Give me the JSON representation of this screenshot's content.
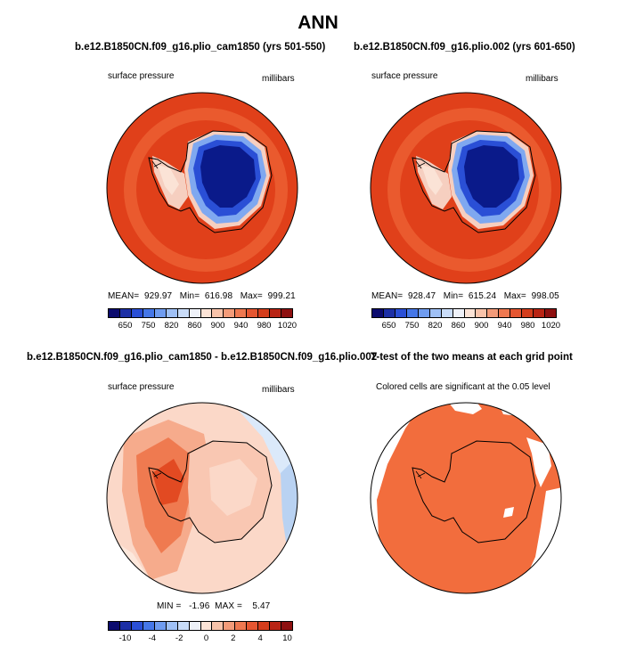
{
  "page_title": "ANN",
  "panels": [
    {
      "title": "b.e12.B1850CN.f09_g16.plio_cam1850 (yrs 501-550)",
      "left_label": "surface pressure",
      "right_label": "millibars",
      "stats": "MEAN=  929.97   Min=  616.98   Max=  999.21"
    },
    {
      "title": "b.e12.B1850CN.f09_g16.plio.002 (yrs 601-650)",
      "left_label": "surface pressure",
      "right_label": "millibars",
      "stats": "MEAN=  928.47   Min=  615.24   Max=  998.05"
    },
    {
      "title": "b.e12.B1850CN.f09_g16.plio_cam1850 - b.e12.B1850CN.f09_g16.plio.002",
      "left_label": "surface pressure",
      "right_label": "millibars",
      "stats": "MIN =   -1.96  MAX =    5.47"
    },
    {
      "title": "T-test of the two means at each grid point",
      "left_label": "Colored cells are significant at the 0.05 level"
    }
  ],
  "colors": {
    "ocean_mean": "#e0401a",
    "ocean_ring": "#ea5a2e",
    "plateau_deep": "#0a1a8a",
    "plateau_mid": "#2a4fd6",
    "plateau_light": "#7fa8f0",
    "coast_light": "#f6cfc0",
    "diff_base": "#fbd8c8",
    "diff_mid": "#f6ab8c",
    "diff_high": "#ef7a50",
    "diff_peak": "#e24a22",
    "diff_neg": "#dbe9fa",
    "ttest_fill": "#f26d3d"
  },
  "chart_data": [
    {
      "type": "heatmap",
      "title": "b.e12.B1850CN.f09_g16.plio_cam1850 (yrs 501-550)",
      "variable": "surface pressure",
      "units": "millibars",
      "projection": "south polar stereographic",
      "mean": 929.97,
      "min": 616.98,
      "max": 999.21,
      "colorbar_colors": [
        "#0b0b6e",
        "#1c2fa6",
        "#2a4fd6",
        "#4577e8",
        "#6f9cf0",
        "#9fc0f5",
        "#c9dcf8",
        "#eef1f8",
        "#fbe3d6",
        "#f8c3aa",
        "#f39b79",
        "#ee7850",
        "#e55631",
        "#d43d1c",
        "#b92414",
        "#8e1010"
      ],
      "colorbar_ticks": [
        "650",
        "750",
        "820",
        "860",
        "900",
        "940",
        "980",
        "1020"
      ]
    },
    {
      "type": "heatmap",
      "title": "b.e12.B1850CN.f09_g16.plio.002 (yrs 601-650)",
      "variable": "surface pressure",
      "units": "millibars",
      "projection": "south polar stereographic",
      "mean": 928.47,
      "min": 615.24,
      "max": 998.05,
      "colorbar_colors": [
        "#0b0b6e",
        "#1c2fa6",
        "#2a4fd6",
        "#4577e8",
        "#6f9cf0",
        "#9fc0f5",
        "#c9dcf8",
        "#eef1f8",
        "#fbe3d6",
        "#f8c3aa",
        "#f39b79",
        "#ee7850",
        "#e55631",
        "#d43d1c",
        "#b92414",
        "#8e1010"
      ],
      "colorbar_ticks": [
        "650",
        "750",
        "820",
        "860",
        "900",
        "940",
        "980",
        "1020"
      ]
    },
    {
      "type": "heatmap",
      "title": "b.e12.B1850CN.f09_g16.plio_cam1850 - b.e12.B1850CN.f09_g16.plio.002",
      "variable": "surface pressure",
      "units": "millibars",
      "projection": "south polar stereographic",
      "min": -1.96,
      "max": 5.47,
      "colorbar_colors": [
        "#0b0b6e",
        "#1c2fa6",
        "#2a4fd6",
        "#4577e8",
        "#6f9cf0",
        "#9fc0f5",
        "#c9dcf8",
        "#eef1f8",
        "#fbe3d6",
        "#f8c3aa",
        "#f39b79",
        "#ee7850",
        "#e55631",
        "#d43d1c",
        "#b92414",
        "#8e1010"
      ],
      "colorbar_ticks": [
        "-10",
        "-4",
        "-2",
        "0",
        "2",
        "4",
        "10"
      ]
    },
    {
      "type": "heatmap",
      "title": "T-test of the two means at each grid point",
      "note": "Colored cells are significant at the 0.05 level",
      "significance_level": 0.05
    }
  ]
}
